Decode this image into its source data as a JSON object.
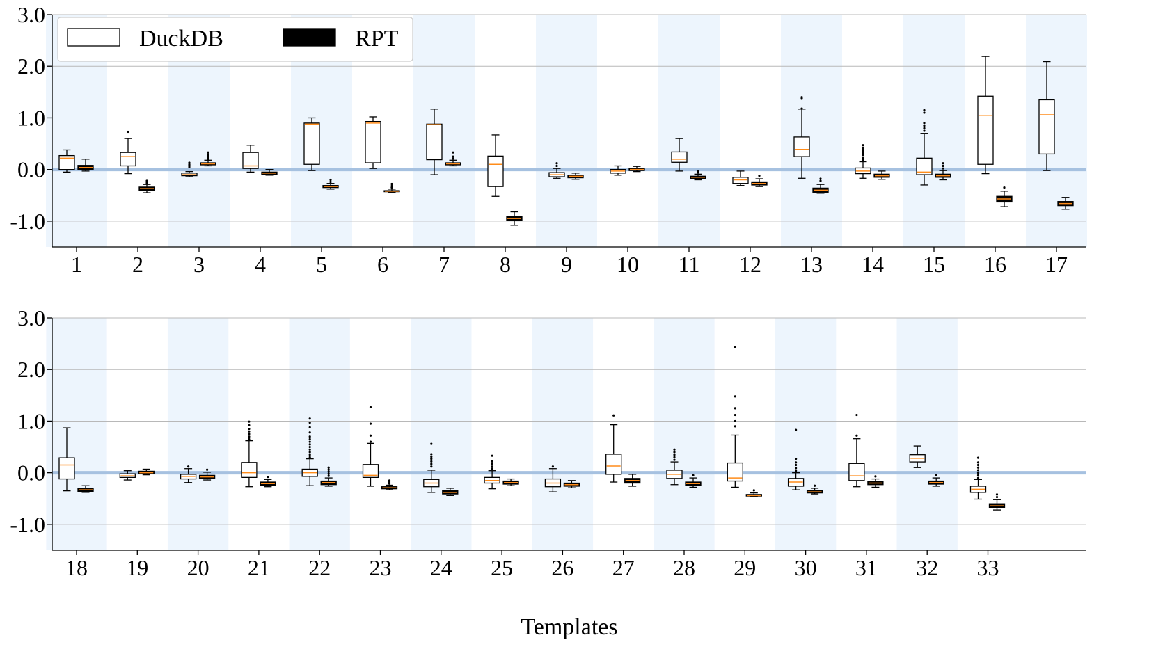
{
  "chart_data": {
    "type": "boxplot",
    "title": "",
    "xlabel": "Templates",
    "ylabel": "",
    "ylim": [
      -1.5,
      3.0
    ],
    "yticks": [
      "3.0",
      "2.0",
      "1.0",
      "0.0",
      "-1.0"
    ],
    "grid": "horizontal",
    "reference_line": 0.0,
    "legend": {
      "position": "top-left",
      "entries": [
        "DuckDB",
        "RPT"
      ]
    },
    "colors": {
      "shade": "#edf5fd",
      "zero_line": "#a6c1e0",
      "median": "#ff8c1a",
      "grid": "#b8b8b8",
      "box_edge": "#000000",
      "rpt_fill": "#000000",
      "duckdb_fill": "#ffffff"
    },
    "panels": [
      {
        "templates": [
          "1",
          "2",
          "3",
          "4",
          "5",
          "6",
          "7",
          "8",
          "9",
          "10",
          "11",
          "12",
          "13",
          "14",
          "15",
          "16",
          "17"
        ],
        "series": [
          {
            "name": "DuckDB",
            "boxes": [
              {
                "wl": -0.05,
                "q1": 0.0,
                "med": 0.22,
                "q3": 0.27,
                "wh": 0.38,
                "fl": []
              },
              {
                "wl": -0.08,
                "q1": 0.07,
                "med": 0.25,
                "q3": 0.33,
                "wh": 0.6,
                "fl": [
                  0.73
                ]
              },
              {
                "wl": -0.14,
                "q1": -0.12,
                "med": -0.1,
                "q3": -0.07,
                "wh": -0.04,
                "fl": [
                  0.05,
                  0.08,
                  0.1,
                  0.13
                ]
              },
              {
                "wl": -0.05,
                "q1": 0.02,
                "med": 0.07,
                "q3": 0.33,
                "wh": 0.47,
                "fl": []
              },
              {
                "wl": -0.02,
                "q1": 0.1,
                "med": 0.88,
                "q3": 0.9,
                "wh": 1.0,
                "fl": []
              },
              {
                "wl": 0.02,
                "q1": 0.13,
                "med": 0.9,
                "q3": 0.93,
                "wh": 1.02,
                "fl": []
              },
              {
                "wl": -0.1,
                "q1": 0.19,
                "med": 0.87,
                "q3": 0.88,
                "wh": 1.17,
                "fl": []
              },
              {
                "wl": -0.52,
                "q1": -0.33,
                "med": 0.1,
                "q3": 0.26,
                "wh": 0.67,
                "fl": []
              },
              {
                "wl": -0.17,
                "q1": -0.14,
                "med": -0.1,
                "q3": -0.06,
                "wh": 0.02,
                "fl": [
                  0.07,
                  0.12
                ]
              },
              {
                "wl": -0.11,
                "q1": -0.07,
                "med": -0.03,
                "q3": 0.0,
                "wh": 0.07,
                "fl": []
              },
              {
                "wl": -0.03,
                "q1": 0.14,
                "med": 0.2,
                "q3": 0.34,
                "wh": 0.6,
                "fl": []
              },
              {
                "wl": -0.31,
                "q1": -0.27,
                "med": -0.2,
                "q3": -0.15,
                "wh": -0.03,
                "fl": []
              },
              {
                "wl": -0.17,
                "q1": 0.25,
                "med": 0.39,
                "q3": 0.63,
                "wh": 1.17,
                "fl": [
                  1.18,
                  1.37,
                  1.4
                ]
              },
              {
                "wl": -0.17,
                "q1": -0.08,
                "med": -0.03,
                "q3": 0.03,
                "wh": 0.15,
                "fl": [
                  0.18,
                  0.23,
                  0.28,
                  0.32,
                  0.35,
                  0.38,
                  0.42,
                  0.47
                ]
              },
              {
                "wl": -0.3,
                "q1": -0.1,
                "med": -0.05,
                "q3": 0.22,
                "wh": 0.7,
                "fl": [
                  0.75,
                  0.8,
                  0.85,
                  0.9,
                  1.1,
                  1.15
                ]
              },
              {
                "wl": -0.08,
                "q1": 0.1,
                "med": 1.05,
                "q3": 1.42,
                "wh": 2.19,
                "fl": []
              },
              {
                "wl": -0.02,
                "q1": 0.3,
                "med": 1.06,
                "q3": 1.35,
                "wh": 2.09,
                "fl": []
              }
            ]
          },
          {
            "name": "RPT",
            "boxes": [
              {
                "wl": -0.03,
                "q1": 0.0,
                "med": 0.04,
                "q3": 0.08,
                "wh": 0.2,
                "fl": []
              },
              {
                "wl": -0.45,
                "q1": -0.4,
                "med": -0.37,
                "q3": -0.34,
                "wh": -0.29,
                "fl": [
                  -0.26,
                  -0.22
                ]
              },
              {
                "wl": 0.07,
                "q1": 0.09,
                "med": 0.11,
                "q3": 0.13,
                "wh": 0.18,
                "fl": [
                  0.2,
                  0.23,
                  0.26,
                  0.29,
                  0.33
                ]
              },
              {
                "wl": -0.11,
                "q1": -0.09,
                "med": -0.07,
                "q3": -0.05,
                "wh": 0.0,
                "fl": []
              },
              {
                "wl": -0.38,
                "q1": -0.35,
                "med": -0.33,
                "q3": -0.31,
                "wh": -0.27,
                "fl": [
                  -0.24,
                  -0.2
                ]
              },
              {
                "wl": -0.44,
                "q1": -0.43,
                "med": -0.42,
                "q3": -0.41,
                "wh": -0.38,
                "fl": [
                  -0.35,
                  -0.32,
                  -0.28
                ]
              },
              {
                "wl": 0.07,
                "q1": 0.09,
                "med": 0.11,
                "q3": 0.13,
                "wh": 0.18,
                "fl": [
                  0.21,
                  0.25,
                  0.33
                ]
              },
              {
                "wl": -1.08,
                "q1": -0.99,
                "med": -0.95,
                "q3": -0.91,
                "wh": -0.82,
                "fl": []
              },
              {
                "wl": -0.19,
                "q1": -0.16,
                "med": -0.13,
                "q3": -0.11,
                "wh": -0.07,
                "fl": []
              },
              {
                "wl": -0.04,
                "q1": -0.02,
                "med": 0.0,
                "q3": 0.02,
                "wh": 0.06,
                "fl": []
              },
              {
                "wl": -0.2,
                "q1": -0.18,
                "med": -0.15,
                "q3": -0.13,
                "wh": -0.09,
                "fl": [
                  -0.06,
                  -0.03
                ]
              },
              {
                "wl": -0.33,
                "q1": -0.3,
                "med": -0.27,
                "q3": -0.24,
                "wh": -0.18,
                "fl": [
                  -0.12
                ]
              },
              {
                "wl": -0.46,
                "q1": -0.44,
                "med": -0.4,
                "q3": -0.36,
                "wh": -0.29,
                "fl": [
                  -0.22,
                  -0.18
                ]
              },
              {
                "wl": -0.19,
                "q1": -0.15,
                "med": -0.12,
                "q3": -0.09,
                "wh": -0.03,
                "fl": []
              },
              {
                "wl": -0.2,
                "q1": -0.15,
                "med": -0.12,
                "q3": -0.09,
                "wh": -0.02,
                "fl": [
                  0.02,
                  0.07,
                  0.12
                ]
              },
              {
                "wl": -0.72,
                "q1": -0.63,
                "med": -0.57,
                "q3": -0.52,
                "wh": -0.42,
                "fl": [
                  -0.35
                ]
              },
              {
                "wl": -0.77,
                "q1": -0.7,
                "med": -0.66,
                "q3": -0.62,
                "wh": -0.54,
                "fl": []
              }
            ]
          }
        ]
      },
      {
        "templates": [
          "18",
          "19",
          "20",
          "21",
          "22",
          "23",
          "24",
          "25",
          "26",
          "27",
          "28",
          "29",
          "30",
          "31",
          "32",
          "33"
        ],
        "series": [
          {
            "name": "DuckDB",
            "boxes": [
              {
                "wl": -0.35,
                "q1": -0.12,
                "med": 0.15,
                "q3": 0.29,
                "wh": 0.87,
                "fl": []
              },
              {
                "wl": -0.14,
                "q1": -0.09,
                "med": -0.06,
                "q3": -0.02,
                "wh": 0.04,
                "fl": []
              },
              {
                "wl": -0.19,
                "q1": -0.12,
                "med": -0.07,
                "q3": -0.03,
                "wh": 0.08,
                "fl": [
                  0.12
                ]
              },
              {
                "wl": -0.27,
                "q1": -0.09,
                "med": 0.0,
                "q3": 0.2,
                "wh": 0.62,
                "fl": [
                  0.65,
                  0.7,
                  0.75,
                  0.8,
                  0.85,
                  0.92,
                  0.99
                ]
              },
              {
                "wl": -0.25,
                "q1": -0.07,
                "med": 0.0,
                "q3": 0.07,
                "wh": 0.27,
                "fl": [
                  0.3,
                  0.35,
                  0.4,
                  0.45,
                  0.5,
                  0.55,
                  0.6,
                  0.65,
                  0.7,
                  0.78,
                  0.88,
                  0.97,
                  1.05
                ]
              },
              {
                "wl": -0.26,
                "q1": -0.09,
                "med": -0.05,
                "q3": 0.16,
                "wh": 0.57,
                "fl": [
                  0.6,
                  0.72,
                  0.95,
                  1.27
                ]
              },
              {
                "wl": -0.38,
                "q1": -0.27,
                "med": -0.2,
                "q3": -0.13,
                "wh": 0.05,
                "fl": [
                  0.12,
                  0.17,
                  0.22,
                  0.27,
                  0.31,
                  0.36,
                  0.56
                ]
              },
              {
                "wl": -0.31,
                "q1": -0.2,
                "med": -0.15,
                "q3": -0.09,
                "wh": 0.04,
                "fl": [
                  0.08,
                  0.12,
                  0.17,
                  0.22,
                  0.33
                ]
              },
              {
                "wl": -0.37,
                "q1": -0.27,
                "med": -0.2,
                "q3": -0.12,
                "wh": 0.08,
                "fl": [
                  0.12
                ]
              },
              {
                "wl": -0.18,
                "q1": -0.03,
                "med": 0.13,
                "q3": 0.36,
                "wh": 0.93,
                "fl": [
                  1.11
                ]
              },
              {
                "wl": -0.23,
                "q1": -0.11,
                "med": -0.03,
                "q3": 0.05,
                "wh": 0.21,
                "fl": [
                  0.25,
                  0.3,
                  0.35,
                  0.4,
                  0.45
                ]
              },
              {
                "wl": -0.28,
                "q1": -0.16,
                "med": -0.1,
                "q3": 0.19,
                "wh": 0.73,
                "fl": [
                  0.9,
                  1.0,
                  1.12,
                  1.25,
                  1.48,
                  2.43
                ]
              },
              {
                "wl": -0.33,
                "q1": -0.26,
                "med": -0.18,
                "q3": -0.11,
                "wh": 0.0,
                "fl": [
                  0.04,
                  0.09,
                  0.15,
                  0.2,
                  0.27,
                  0.83
                ]
              },
              {
                "wl": -0.27,
                "q1": -0.15,
                "med": -0.06,
                "q3": 0.18,
                "wh": 0.66,
                "fl": [
                  0.72,
                  1.12
                ]
              },
              {
                "wl": 0.1,
                "q1": 0.21,
                "med": 0.28,
                "q3": 0.35,
                "wh": 0.52,
                "fl": []
              },
              {
                "wl": -0.51,
                "q1": -0.38,
                "med": -0.32,
                "q3": -0.26,
                "wh": -0.13,
                "fl": [
                  -0.1,
                  -0.05,
                  0.0,
                  0.05,
                  0.1,
                  0.15,
                  0.2,
                  0.29
                ]
              }
            ]
          },
          {
            "name": "RPT",
            "boxes": [
              {
                "wl": -0.38,
                "q1": -0.36,
                "med": -0.33,
                "q3": -0.3,
                "wh": -0.25,
                "fl": []
              },
              {
                "wl": -0.04,
                "q1": -0.02,
                "med": 0.0,
                "q3": 0.03,
                "wh": 0.07,
                "fl": []
              },
              {
                "wl": -0.14,
                "q1": -0.11,
                "med": -0.08,
                "q3": -0.05,
                "wh": 0.01,
                "fl": [
                  0.06
                ]
              },
              {
                "wl": -0.27,
                "q1": -0.24,
                "med": -0.21,
                "q3": -0.18,
                "wh": -0.13,
                "fl": [
                  -0.08
                ]
              },
              {
                "wl": -0.26,
                "q1": -0.23,
                "med": -0.19,
                "q3": -0.16,
                "wh": -0.1,
                "fl": [
                  -0.06,
                  -0.02,
                  0.02,
                  0.06,
                  0.1
                ]
              },
              {
                "wl": -0.33,
                "q1": -0.31,
                "med": -0.29,
                "q3": -0.27,
                "wh": -0.24,
                "fl": [
                  -0.21,
                  -0.18,
                  -0.15
                ]
              },
              {
                "wl": -0.44,
                "q1": -0.41,
                "med": -0.38,
                "q3": -0.35,
                "wh": -0.3,
                "fl": []
              },
              {
                "wl": -0.25,
                "q1": -0.22,
                "med": -0.19,
                "q3": -0.16,
                "wh": -0.12,
                "fl": []
              },
              {
                "wl": -0.29,
                "q1": -0.26,
                "med": -0.23,
                "q3": -0.2,
                "wh": -0.15,
                "fl": []
              },
              {
                "wl": -0.26,
                "q1": -0.2,
                "med": -0.15,
                "q3": -0.11,
                "wh": -0.03,
                "fl": []
              },
              {
                "wl": -0.28,
                "q1": -0.25,
                "med": -0.21,
                "q3": -0.18,
                "wh": -0.1,
                "fl": [
                  -0.05
                ]
              },
              {
                "wl": -0.46,
                "q1": -0.45,
                "med": -0.44,
                "q3": -0.42,
                "wh": -0.39,
                "fl": [
                  -0.34
                ]
              },
              {
                "wl": -0.41,
                "q1": -0.39,
                "med": -0.37,
                "q3": -0.35,
                "wh": -0.3,
                "fl": [
                  -0.25
                ]
              },
              {
                "wl": -0.28,
                "q1": -0.23,
                "med": -0.2,
                "q3": -0.17,
                "wh": -0.12,
                "fl": [
                  -0.07
                ]
              },
              {
                "wl": -0.26,
                "q1": -0.22,
                "med": -0.19,
                "q3": -0.16,
                "wh": -0.1,
                "fl": [
                  -0.05
                ]
              },
              {
                "wl": -0.72,
                "q1": -0.68,
                "med": -0.64,
                "q3": -0.6,
                "wh": -0.52,
                "fl": [
                  -0.47,
                  -0.42
                ]
              }
            ]
          }
        ]
      }
    ]
  }
}
